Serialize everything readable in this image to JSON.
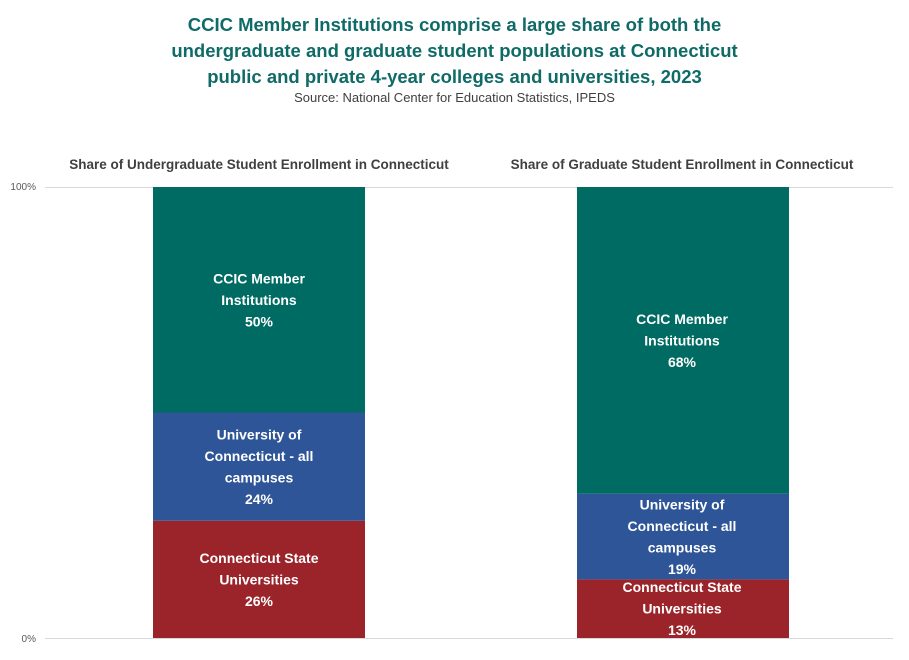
{
  "title_lines": [
    "CCIC Member Institutions comprise a large share of both the",
    "undergraduate and graduate student populations at Connecticut",
    "public and private 4-year colleges and universities, 2023"
  ],
  "source": "Source: National Center for Education Statistics, IPEDS",
  "colors": {
    "ccic": "#006b63",
    "uconn": "#2e5597",
    "csu": "#9b242a",
    "title": "#0f6b67"
  },
  "chart_data": [
    {
      "type": "bar",
      "stacked": true,
      "title": "Share of Undergraduate Student Enrollment in Connecticut",
      "ylim": [
        0,
        100
      ],
      "yticks": [
        "0%",
        "100%"
      ],
      "grid": true,
      "series": [
        {
          "name": "Connecticut State Universities",
          "value": 26,
          "label_lines": [
            "Connecticut State",
            "Universities",
            "26%"
          ]
        },
        {
          "name": "University of Connecticut - all campuses",
          "value": 24,
          "label_lines": [
            "University of",
            "Connecticut - all",
            "campuses",
            "24%"
          ]
        },
        {
          "name": "CCIC Member Institutions",
          "value": 50,
          "label_lines": [
            "CCIC Member",
            "Institutions",
            "50%"
          ]
        }
      ]
    },
    {
      "type": "bar",
      "stacked": true,
      "title": "Share of Graduate Student Enrollment in Connecticut",
      "ylim": [
        0,
        100
      ],
      "yticks": [
        "0%",
        "100%"
      ],
      "grid": true,
      "series": [
        {
          "name": "Connecticut State Universities",
          "value": 13,
          "label_lines": [
            "Connecticut State",
            "Universities",
            "13%"
          ]
        },
        {
          "name": "University of Connecticut - all campuses",
          "value": 19,
          "label_lines": [
            "University of",
            "Connecticut - all",
            "campuses",
            "19%"
          ]
        },
        {
          "name": "CCIC Member Institutions",
          "value": 68,
          "label_lines": [
            "CCIC Member",
            "Institutions",
            "68%"
          ]
        }
      ]
    }
  ]
}
